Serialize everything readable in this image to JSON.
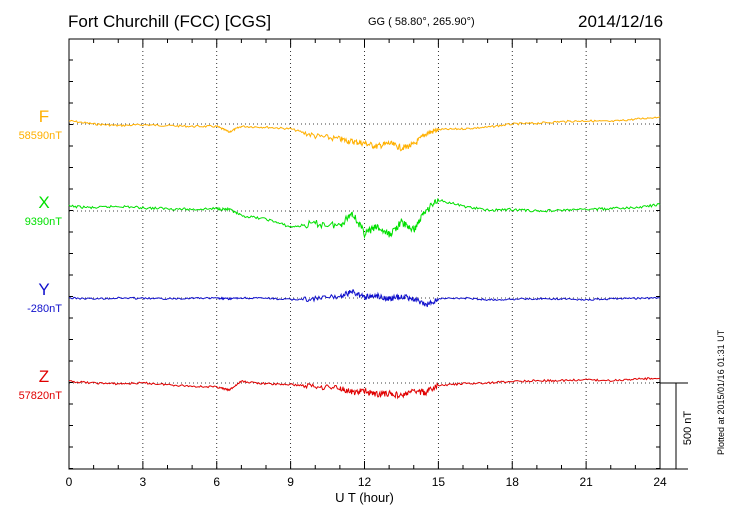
{
  "header": {
    "station": "Fort Churchill (FCC)  [CGS]",
    "coords": "GG ( 58.80°, 265.90°)",
    "date": "2014/12/16"
  },
  "footer": {
    "plotted": "Plotted at 2015/01/16 01:31  UT"
  },
  "chart_data": {
    "type": "line",
    "title": "Fort Churchill (FCC)  [CGS]",
    "xlabel": "U T (hour)",
    "ylabel": "",
    "xlim": [
      0,
      24
    ],
    "x_ticks": [
      0,
      3,
      6,
      9,
      12,
      15,
      18,
      21,
      24
    ],
    "x_tick_labels": [
      "0",
      "3",
      "6",
      "9",
      "12",
      "15",
      "18",
      "21",
      "24"
    ],
    "scale_bar": "500 nT",
    "scale_bar_nT": 500,
    "grid": true,
    "x": [
      0,
      1,
      2,
      3,
      4,
      5,
      6,
      6.5,
      7,
      8,
      9,
      10,
      11,
      11.5,
      12,
      12.5,
      13,
      13.5,
      14,
      14.5,
      15,
      16,
      17,
      18,
      19,
      20,
      21,
      22,
      23,
      24
    ],
    "series": [
      {
        "name": "F",
        "baseline": "58590nT",
        "color": "#ffb000",
        "values": [
          58610,
          58590,
          58580,
          58585,
          58580,
          58575,
          58575,
          58540,
          58575,
          58570,
          58560,
          58515,
          58495,
          58480,
          58470,
          58450,
          58470,
          58440,
          58460,
          58530,
          58555,
          58560,
          58570,
          58590,
          58595,
          58605,
          58610,
          58605,
          58620,
          58635
        ]
      },
      {
        "name": "X",
        "baseline": "9390nT",
        "color": "#00e000",
        "values": [
          9420,
          9410,
          9420,
          9410,
          9405,
          9400,
          9405,
          9400,
          9360,
          9340,
          9290,
          9310,
          9300,
          9380,
          9250,
          9290,
          9240,
          9320,
          9270,
          9400,
          9460,
          9420,
          9395,
          9400,
          9390,
          9395,
          9400,
          9405,
          9410,
          9430
        ]
      },
      {
        "name": "Y",
        "baseline": "-280nT",
        "color": "#1010cc",
        "values": [
          -280,
          -285,
          -280,
          -282,
          -285,
          -280,
          -282,
          -285,
          -280,
          -282,
          -290,
          -285,
          -270,
          -240,
          -275,
          -265,
          -285,
          -270,
          -285,
          -325,
          -285,
          -280,
          -290,
          -288,
          -285,
          -285,
          -290,
          -285,
          -282,
          -280
        ]
      },
      {
        "name": "Z",
        "baseline": "57820nT",
        "color": "#e00000",
        "values": [
          57830,
          57820,
          57815,
          57820,
          57810,
          57800,
          57795,
          57775,
          57830,
          57815,
          57810,
          57800,
          57790,
          57760,
          57770,
          57750,
          57755,
          57740,
          57770,
          57760,
          57805,
          57815,
          57820,
          57830,
          57835,
          57835,
          57840,
          57835,
          57845,
          57850
        ]
      }
    ]
  }
}
